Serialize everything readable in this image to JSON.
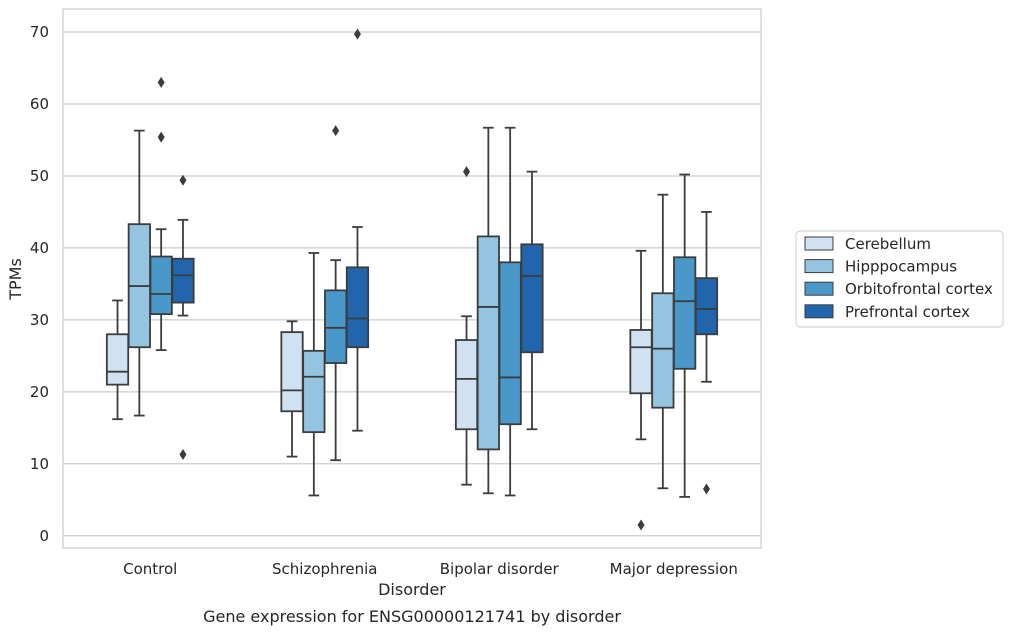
{
  "caption": "Gene expression for ENSG00000121741 by disorder",
  "chart_data": {
    "type": "boxplot",
    "xlabel": "Disorder",
    "ylabel": "TPMs",
    "ylim": [
      -1.7,
      73.2
    ],
    "yticks": [
      0,
      10,
      20,
      30,
      40,
      50,
      60,
      70
    ],
    "grid": "horizontal",
    "legend_position": "right",
    "categories": [
      "Control",
      "Schizophrenia",
      "Bipolar disorder",
      "Major depression"
    ],
    "series": [
      {
        "name": "Cerebellum",
        "color": "#d0e1f2",
        "boxes": [
          {
            "whisker_low": 16.2,
            "q1": 21.0,
            "median": 22.8,
            "q3": 28.0,
            "whisker_high": 32.7,
            "outliers": []
          },
          {
            "whisker_low": 11.0,
            "q1": 17.3,
            "median": 20.2,
            "q3": 28.3,
            "whisker_high": 29.8,
            "outliers": []
          },
          {
            "whisker_low": 7.1,
            "q1": 14.8,
            "median": 21.8,
            "q3": 27.2,
            "whisker_high": 30.5,
            "outliers": [
              50.6
            ]
          },
          {
            "whisker_low": 13.4,
            "q1": 19.8,
            "median": 26.2,
            "q3": 28.6,
            "whisker_high": 39.6,
            "outliers": [
              1.5
            ]
          }
        ]
      },
      {
        "name": "Hipppocampus",
        "color": "#94c4df",
        "boxes": [
          {
            "whisker_low": 16.7,
            "q1": 26.2,
            "median": 34.7,
            "q3": 43.3,
            "whisker_high": 56.3,
            "outliers": []
          },
          {
            "whisker_low": 5.6,
            "q1": 14.4,
            "median": 22.1,
            "q3": 25.7,
            "whisker_high": 39.3,
            "outliers": []
          },
          {
            "whisker_low": 5.9,
            "q1": 12.0,
            "median": 31.8,
            "q3": 41.6,
            "whisker_high": 56.7,
            "outliers": []
          },
          {
            "whisker_low": 6.6,
            "q1": 17.8,
            "median": 26.0,
            "q3": 33.7,
            "whisker_high": 47.4,
            "outliers": []
          }
        ]
      },
      {
        "name": "Orbitofrontal cortex",
        "color": "#4a98c9",
        "boxes": [
          {
            "whisker_low": 25.8,
            "q1": 30.8,
            "median": 33.6,
            "q3": 38.8,
            "whisker_high": 42.6,
            "outliers": [
              55.4,
              63.0
            ]
          },
          {
            "whisker_low": 10.5,
            "q1": 24.0,
            "median": 28.9,
            "q3": 34.1,
            "whisker_high": 38.3,
            "outliers": [
              56.3
            ]
          },
          {
            "whisker_low": 5.6,
            "q1": 15.5,
            "median": 22.0,
            "q3": 38.0,
            "whisker_high": 56.7,
            "outliers": []
          },
          {
            "whisker_low": 5.4,
            "q1": 23.2,
            "median": 32.6,
            "q3": 38.7,
            "whisker_high": 50.2,
            "outliers": []
          }
        ]
      },
      {
        "name": "Prefrontal cortex",
        "color": "#2166ac",
        "boxes": [
          {
            "whisker_low": 30.6,
            "q1": 32.4,
            "median": 36.2,
            "q3": 38.5,
            "whisker_high": 43.9,
            "outliers": [
              49.4,
              11.3
            ]
          },
          {
            "whisker_low": 14.6,
            "q1": 26.2,
            "median": 30.2,
            "q3": 37.3,
            "whisker_high": 42.9,
            "outliers": [
              69.7
            ]
          },
          {
            "whisker_low": 14.8,
            "q1": 25.5,
            "median": 36.1,
            "q3": 40.5,
            "whisker_high": 50.6,
            "outliers": []
          },
          {
            "whisker_low": 21.4,
            "q1": 28.0,
            "median": 31.5,
            "q3": 35.8,
            "whisker_high": 45.0,
            "outliers": [
              6.5
            ]
          }
        ]
      }
    ]
  }
}
